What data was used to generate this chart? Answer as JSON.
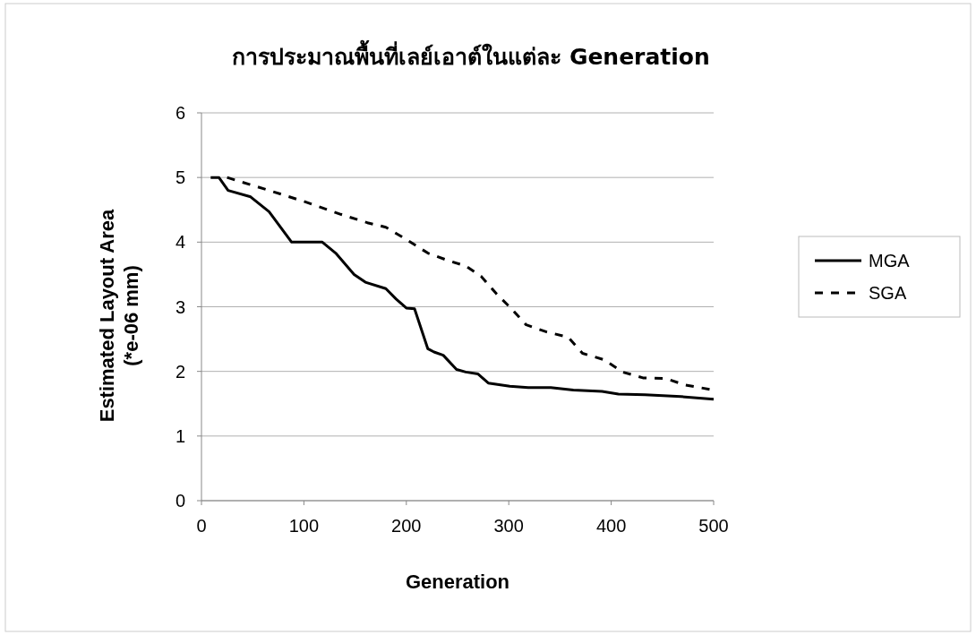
{
  "chart_data": {
    "type": "line",
    "title": "การประมาณพื้นที่เลย์เอาต์ในแต่ละ Generation",
    "xlabel": "Generation",
    "ylabel": "Estimated Layout Area\n(*e-06 mm)",
    "xlim": [
      0,
      500
    ],
    "xticks": [
      0,
      100,
      200,
      300,
      400,
      500
    ],
    "ylim": [
      0,
      6
    ],
    "yticks": [
      0,
      1,
      2,
      3,
      4,
      5,
      6
    ],
    "grid": "y",
    "legend": "right",
    "series": [
      {
        "name": "MGA",
        "color": "#000000",
        "line_style": "solid",
        "x": [
          9,
          17,
          26,
          48,
          66,
          88,
          100,
          118,
          131,
          149,
          160,
          180,
          190,
          200,
          208,
          221,
          227,
          236,
          249,
          258,
          270,
          280,
          301,
          319,
          341,
          363,
          391,
          407,
          433,
          468,
          500
        ],
        "values": [
          5,
          5,
          4.8,
          4.7,
          4.47,
          4.0,
          4.0,
          4.0,
          3.83,
          3.5,
          3.38,
          3.28,
          3.12,
          2.98,
          2.97,
          2.35,
          2.3,
          2.25,
          2.03,
          1.99,
          1.96,
          1.82,
          1.77,
          1.75,
          1.75,
          1.71,
          1.69,
          1.65,
          1.64,
          1.61,
          1.57
        ]
      },
      {
        "name": "SGA",
        "color": "#000000",
        "line_style": "dashed",
        "x": [
          25,
          66,
          100,
          136,
          162,
          180,
          197,
          221,
          240,
          258,
          273,
          288,
          302,
          317,
          337,
          358,
          372,
          393,
          411,
          431,
          453,
          472,
          497
        ],
        "values": [
          5,
          4.8,
          4.63,
          4.43,
          4.3,
          4.23,
          4.07,
          3.83,
          3.72,
          3.63,
          3.47,
          3.2,
          2.98,
          2.72,
          2.61,
          2.53,
          2.28,
          2.18,
          1.99,
          1.9,
          1.89,
          1.79,
          1.72
        ]
      }
    ]
  }
}
